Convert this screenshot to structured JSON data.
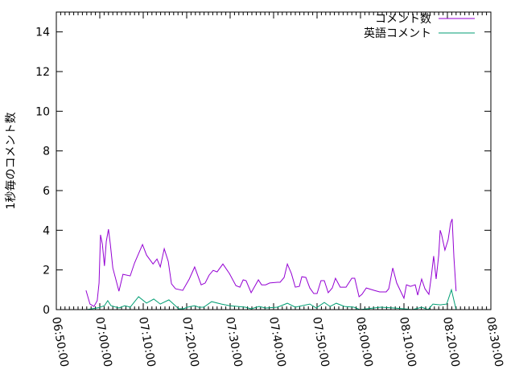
{
  "chart_data": {
    "type": "line",
    "title": "",
    "xlabel": "",
    "ylabel": "1秒毎のコメント数",
    "xlim": [
      "06:50:00",
      "08:30:00"
    ],
    "ylim": [
      0,
      15
    ],
    "x_ticks": [
      "06:50:00",
      "07:00:00",
      "07:10:00",
      "07:20:00",
      "07:30:00",
      "07:40:00",
      "07:50:00",
      "08:00:00",
      "08:10:00",
      "08:20:00",
      "08:30:00"
    ],
    "y_ticks": [
      0,
      2,
      4,
      6,
      8,
      10,
      12,
      14
    ],
    "grid": false,
    "legend_position": "top-right",
    "series": [
      {
        "name": "コメント数",
        "color": "#9400d3",
        "x": [
          "06:56:50",
          "06:57:45",
          "06:58:40",
          "06:59:25",
          "06:59:50",
          "07:00:10",
          "07:00:35",
          "07:01:05",
          "07:01:30",
          "07:02:00",
          "07:02:25",
          "07:03:00",
          "07:04:25",
          "07:05:20",
          "07:07:00",
          "07:08:00",
          "07:09:50",
          "07:10:45",
          "07:12:15",
          "07:13:10",
          "07:13:55",
          "07:14:50",
          "07:15:45",
          "07:16:30",
          "07:17:25",
          "07:19:05",
          "07:20:35",
          "07:21:50",
          "07:23:20",
          "07:24:15",
          "07:25:10",
          "07:26:05",
          "07:27:00",
          "07:28:20",
          "07:29:50",
          "07:31:20",
          "07:32:15",
          "07:33:00",
          "07:33:40",
          "07:34:50",
          "07:36:30",
          "07:37:15",
          "07:38:10",
          "07:39:05",
          "07:40:55",
          "07:41:30",
          "07:42:25",
          "07:43:10",
          "07:44:05",
          "07:45:00",
          "07:45:55",
          "07:46:30",
          "07:47:25",
          "07:48:20",
          "07:49:15",
          "07:50:00",
          "07:50:55",
          "07:51:40",
          "07:52:35",
          "07:53:30",
          "07:54:15",
          "07:55:20",
          "07:56:40",
          "07:58:00",
          "07:58:40",
          "07:59:40",
          "08:00:20",
          "08:01:20",
          "08:03:10",
          "08:04:25",
          "08:05:55",
          "08:06:30",
          "08:07:25",
          "08:08:20",
          "08:10:00",
          "08:10:35",
          "08:11:30",
          "08:12:35",
          "08:13:10",
          "08:14:05",
          "08:14:50",
          "08:15:45",
          "08:16:20",
          "08:16:50",
          "08:17:25",
          "08:18:00",
          "08:18:20",
          "08:18:40",
          "08:19:25",
          "08:20:10",
          "08:20:45",
          "08:21:05",
          "08:21:30",
          "08:22:00"
        ],
        "y": [
          0.97,
          0.28,
          0.16,
          0.45,
          1.34,
          3.77,
          3.3,
          2.2,
          3.44,
          4.05,
          3.3,
          2.1,
          0.93,
          1.78,
          1.7,
          2.35,
          3.28,
          2.75,
          2.3,
          2.55,
          2.15,
          3.07,
          2.43,
          1.3,
          1.05,
          0.97,
          1.54,
          2.15,
          1.25,
          1.34,
          1.74,
          1.98,
          1.9,
          2.3,
          1.82,
          1.21,
          1.13,
          1.5,
          1.46,
          0.85,
          1.5,
          1.25,
          1.25,
          1.34,
          1.38,
          1.38,
          1.62,
          2.3,
          1.82,
          1.13,
          1.17,
          1.66,
          1.62,
          1.09,
          0.81,
          0.81,
          1.46,
          1.46,
          0.85,
          1.09,
          1.58,
          1.13,
          1.13,
          1.58,
          1.58,
          0.65,
          0.77,
          1.09,
          0.97,
          0.89,
          0.89,
          1.05,
          2.1,
          1.34,
          0.57,
          1.25,
          1.17,
          1.25,
          0.73,
          1.54,
          1.05,
          0.77,
          1.74,
          2.7,
          1.54,
          2.75,
          4.0,
          3.77,
          3.0,
          3.52,
          4.37,
          4.57,
          2.63,
          0.93
        ]
      },
      {
        "name": "英語コメント",
        "color": "#009e73",
        "x": [
          "06:57:00",
          "06:59:50",
          "07:01:05",
          "07:01:50",
          "07:02:35",
          "07:04:25",
          "07:05:45",
          "07:07:00",
          "07:08:55",
          "07:10:45",
          "07:12:25",
          "07:13:55",
          "07:15:55",
          "07:18:10",
          "07:19:15",
          "07:20:10",
          "07:21:50",
          "07:22:45",
          "07:23:55",
          "07:25:45",
          "07:28:00",
          "07:29:50",
          "07:33:30",
          "07:34:50",
          "07:36:40",
          "07:38:10",
          "07:40:55",
          "07:43:10",
          "07:45:00",
          "07:48:20",
          "07:49:50",
          "07:51:40",
          "07:53:00",
          "07:54:25",
          "07:56:20",
          "07:58:30",
          "07:59:50",
          "08:04:40",
          "08:07:45",
          "08:12:00",
          "08:14:05",
          "08:15:35",
          "08:16:40",
          "08:18:20",
          "08:19:50",
          "08:20:55",
          "08:22:00"
        ],
        "y": [
          0,
          0.1,
          0.2,
          0.45,
          0.2,
          0.08,
          0.2,
          0.12,
          0.65,
          0.33,
          0.53,
          0.28,
          0.49,
          0.04,
          0.04,
          0.12,
          0.2,
          0.12,
          0.12,
          0.4,
          0.28,
          0.2,
          0.12,
          0.04,
          0.16,
          0.08,
          0.12,
          0.32,
          0.12,
          0.28,
          0.08,
          0.36,
          0.16,
          0.32,
          0.16,
          0.12,
          0,
          0.12,
          0.08,
          0,
          0.12,
          0,
          0.28,
          0.24,
          0.28,
          1.0,
          0
        ]
      }
    ]
  }
}
